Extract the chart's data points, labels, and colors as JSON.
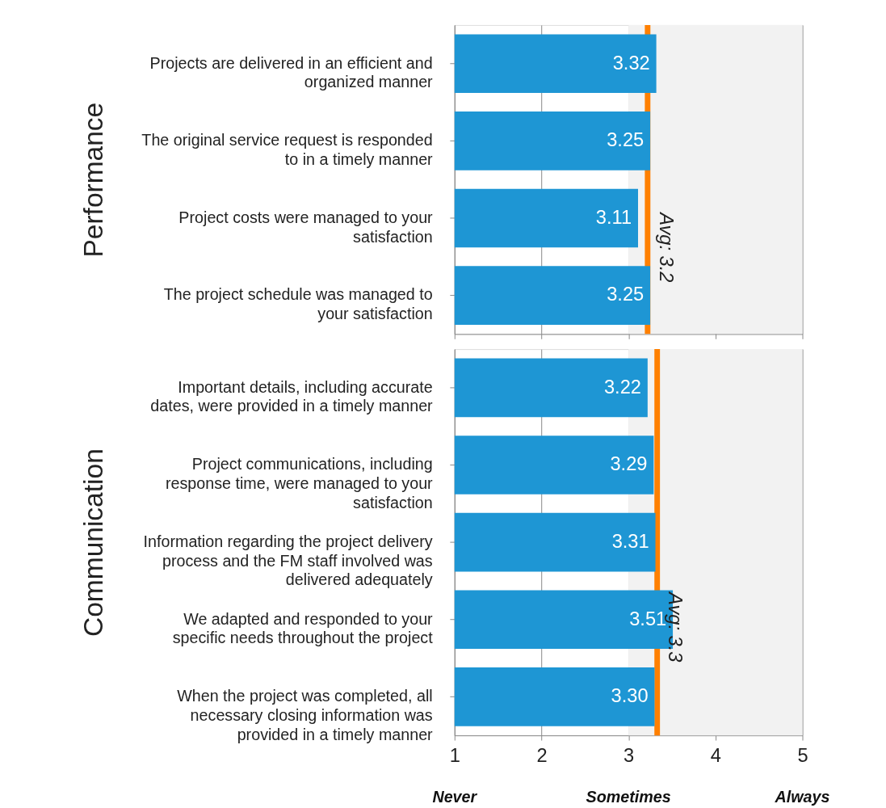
{
  "chart_data": [
    {
      "type": "bar",
      "orientation": "horizontal",
      "ylabel": "Performance",
      "categories": [
        "Projects are delivered in an efficient and\norganized manner",
        "The original service request is responded\nto in a timely manner",
        "Project costs were managed to your\nsatisfaction",
        "The project schedule was managed to\nyour satisfaction"
      ],
      "values": [
        3.32,
        3.25,
        3.11,
        3.25
      ],
      "color": "#1e96d4",
      "value_labels": [
        "3.32",
        "3.25",
        "3.11",
        "3.25"
      ],
      "xlim": [
        1,
        5
      ],
      "xticks": [
        1,
        2,
        3,
        4,
        5
      ],
      "grid": "x",
      "tick_labels": "y",
      "bands": [
        {
          "axis": "x",
          "from": 3,
          "to": 5,
          "color": "#f2f2f2"
        }
      ],
      "ref_lines": [
        {
          "axis": "x",
          "value": 3.22,
          "label": "Avg: 3.2",
          "color": "#ff8000"
        }
      ]
    },
    {
      "type": "bar",
      "orientation": "horizontal",
      "ylabel": "Communication",
      "categories": [
        "Important details, including accurate\ndates, were provided in a timely manner",
        "Project communications, including\nresponse time, were managed to your\nsatisfaction",
        "Information regarding the project delivery\nprocess and the FM staff involved was\ndelivered adequately",
        "We adapted and responded to your\nspecific needs throughout the project",
        "When the project was completed, all\nnecessary closing information was\nprovided in a timely manner"
      ],
      "values": [
        3.22,
        3.29,
        3.31,
        3.51,
        3.3
      ],
      "color": "#1e96d4",
      "value_labels": [
        "3.22",
        "3.29",
        "3.31",
        "3.51",
        "3.30"
      ],
      "xlim": [
        1,
        5
      ],
      "xticks": [
        1,
        2,
        3,
        4,
        5
      ],
      "grid": "x",
      "bands": [
        {
          "axis": "x",
          "from": 3,
          "to": 5,
          "color": "#f2f2f2"
        }
      ],
      "ref_lines": [
        {
          "axis": "x",
          "value": 3.33,
          "label": "Avg: 3.3",
          "color": "#ff8000"
        }
      ],
      "annotations": [
        "Never",
        "Sometimes",
        "Always"
      ]
    }
  ]
}
